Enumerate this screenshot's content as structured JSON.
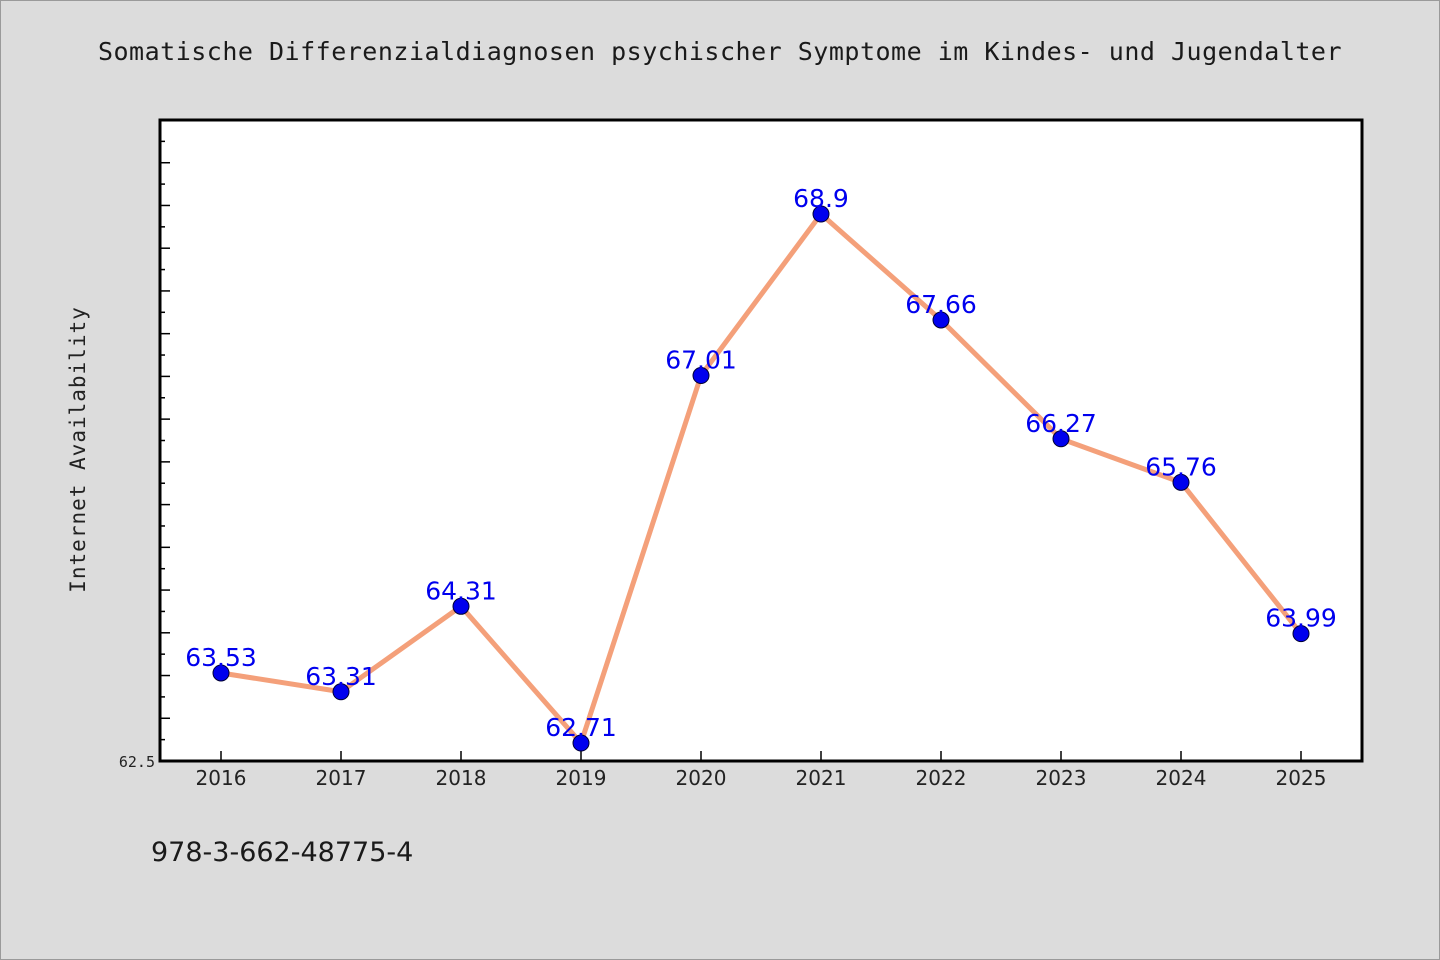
{
  "chart_data": {
    "type": "line",
    "title": "Somatische Differenzialdiagnosen psychischer Symptome im Kindes- und Jugendalter",
    "xlabel": "",
    "ylabel": "Internet Availability",
    "categories": [
      "2016",
      "2017",
      "2018",
      "2019",
      "2020",
      "2021",
      "2022",
      "2023",
      "2024",
      "2025"
    ],
    "values": [
      63.53,
      63.31,
      64.31,
      62.71,
      67.01,
      68.9,
      67.66,
      66.27,
      65.76,
      63.99
    ],
    "ylim": [
      62.5,
      70.0
    ],
    "y_min_label": "62.5",
    "data_labels": [
      "63.53",
      "63.31",
      "64.31",
      "62.71",
      "67.01",
      "68.9",
      "67.66",
      "66.27",
      "65.76",
      "63.99"
    ],
    "grid": false,
    "legend": "none",
    "line_color": "#f4a07a",
    "marker_color": "#0000ee",
    "label_color": "#0000ee"
  },
  "footer": {
    "isbn": "978-3-662-48775-4"
  }
}
